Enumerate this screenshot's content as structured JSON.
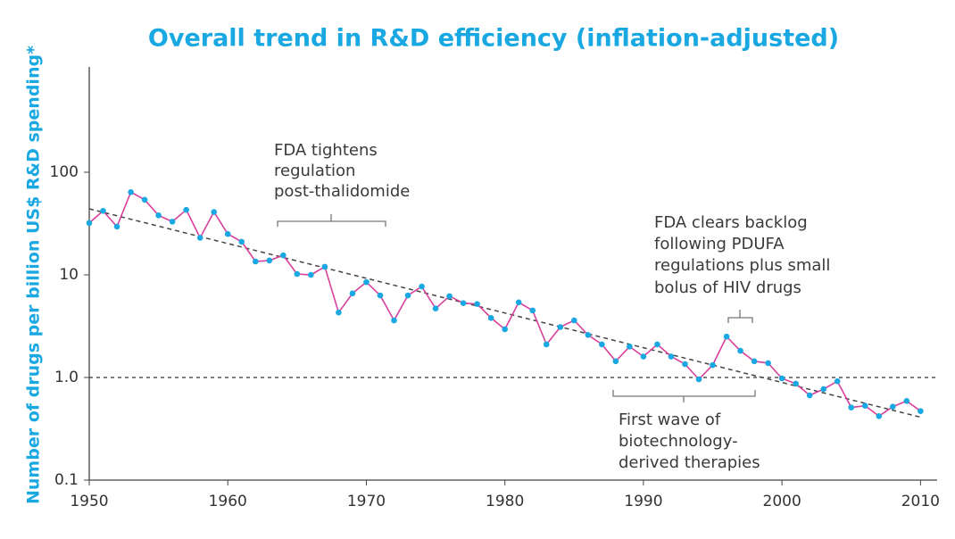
{
  "chart_data": {
    "type": "line",
    "title": "Overall trend in R&D efficiency (inflation-adjusted)",
    "y_label": "Number of drugs per billion US$ R&D spending*",
    "log_y": true,
    "xlim": [
      1950,
      2011.2
    ],
    "xticks": [
      1950,
      1960,
      1970,
      1980,
      1990,
      2000,
      2010
    ],
    "ylim": [
      0.1,
      1000
    ],
    "yticks": [
      0.1,
      {
        "value": 1,
        "label": "1.0"
      },
      10,
      100
    ],
    "x": [
      1950,
      1951,
      1952,
      1953,
      1954,
      1955,
      1956,
      1957,
      1958,
      1959,
      1960,
      1961,
      1962,
      1963,
      1964,
      1965,
      1966,
      1967,
      1968,
      1969,
      1970,
      1971,
      1972,
      1973,
      1974,
      1975,
      1976,
      1977,
      1978,
      1979,
      1980,
      1981,
      1982,
      1983,
      1984,
      1985,
      1986,
      1987,
      1988,
      1989,
      1990,
      1991,
      1992,
      1993,
      1994,
      1995,
      1996,
      1997,
      1998,
      1999,
      2000,
      2001,
      2002,
      2003,
      2004,
      2005,
      2006,
      2007,
      2008,
      2009,
      2010
    ],
    "values": [
      32,
      42,
      29.5,
      64,
      54,
      38,
      33,
      43,
      23,
      41,
      25,
      21,
      13.5,
      13.8,
      15.5,
      10.2,
      10,
      12,
      4.3,
      6.6,
      8.5,
      6.3,
      3.6,
      6.3,
      7.7,
      4.7,
      6.2,
      5.3,
      5.2,
      3.8,
      2.95,
      5.4,
      4.5,
      2.1,
      3.1,
      3.6,
      2.6,
      2.1,
      1.44,
      2.0,
      1.6,
      2.1,
      1.6,
      1.35,
      0.96,
      1.32,
      2.5,
      1.82,
      1.44,
      1.38,
      0.98,
      0.87,
      0.67,
      0.77,
      0.92,
      0.51,
      0.53,
      0.42,
      0.52,
      0.59,
      0.47
    ],
    "color": "#d8409c",
    "marker_color": "#1aa8e2",
    "trend": {
      "x": [
        1950,
        2010
      ],
      "values": [
        44,
        0.41
      ]
    },
    "reference_line": 1,
    "annotations": [
      {
        "lines": [
          "FDA tightens",
          "regulation",
          "post-thalidomide"
        ]
      },
      {
        "lines": [
          "FDA clears backlog",
          "following PDUFA",
          "regulations plus small",
          "bolus of HIV drugs"
        ]
      },
      {
        "lines": [
          "First wave of",
          "biotechnology-",
          "derived therapies"
        ]
      }
    ]
  }
}
